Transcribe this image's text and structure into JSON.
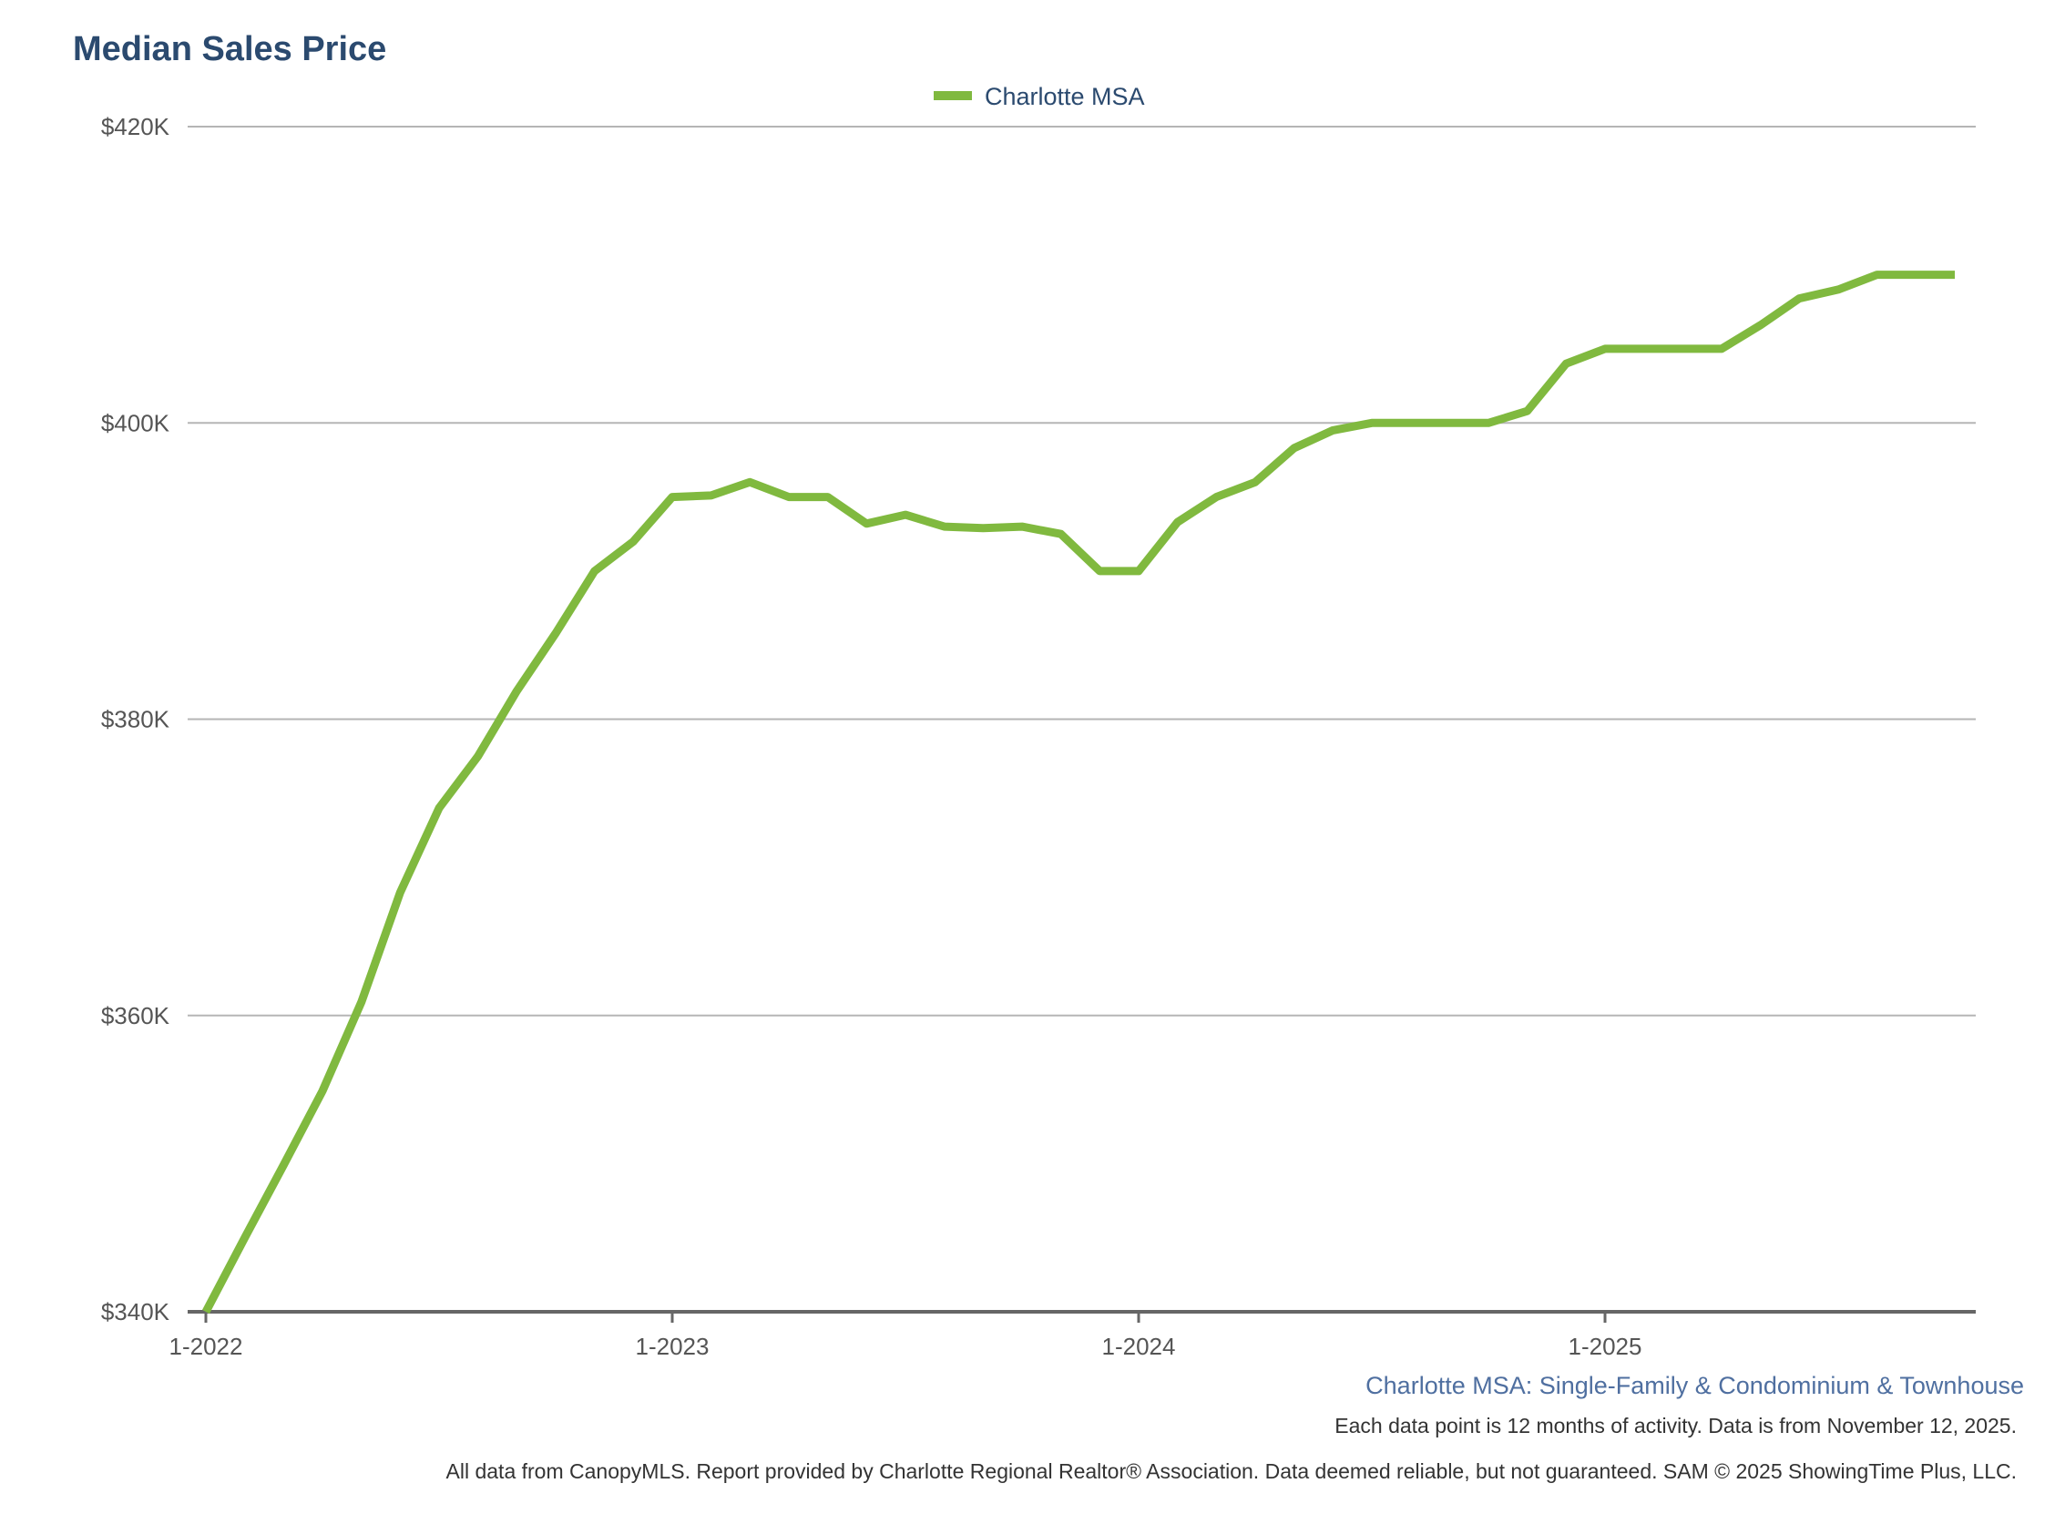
{
  "chart_data": {
    "type": "line",
    "title": "Median Sales Price",
    "xlabel": "",
    "ylabel": "",
    "ylim": [
      340000,
      420000
    ],
    "yticks": [
      340000,
      360000,
      380000,
      400000,
      420000
    ],
    "ytick_labels": [
      "$340K",
      "$360K",
      "$380K",
      "$400K",
      "$420K"
    ],
    "xtick_labels": [
      "1-2022",
      "1-2023",
      "1-2024",
      "1-2025"
    ],
    "xtick_index": [
      0,
      12,
      24,
      36
    ],
    "grid": true,
    "legend_position": "top-center",
    "x_start": "1-2022",
    "x_step": "month",
    "series": [
      {
        "name": "Charlotte MSA",
        "color": "#80b93f",
        "values": [
          340000,
          345000,
          349900,
          354900,
          360900,
          368300,
          374000,
          377500,
          381900,
          385800,
          390000,
          392000,
          395000,
          395100,
          396000,
          395000,
          395000,
          393200,
          393800,
          393000,
          392900,
          393000,
          392500,
          390000,
          390000,
          393300,
          395000,
          396000,
          398300,
          399500,
          400000,
          400000,
          400000,
          400000,
          400800,
          404000,
          405000,
          405000,
          405000,
          405000,
          406600,
          408400,
          409000,
          410000,
          410000,
          410000
        ]
      }
    ]
  },
  "footer": {
    "subtitle": "Charlotte MSA: Single-Family & Condominium & Townhouse",
    "note": "Each data point is 12 months of activity. Data is from November 12, 2025.",
    "disclaimer": "All data from CanopyMLS. Report provided by Charlotte Regional Realtor® Association. Data deemed reliable, but not guaranteed. SAM © 2025 ShowingTime Plus, LLC."
  }
}
